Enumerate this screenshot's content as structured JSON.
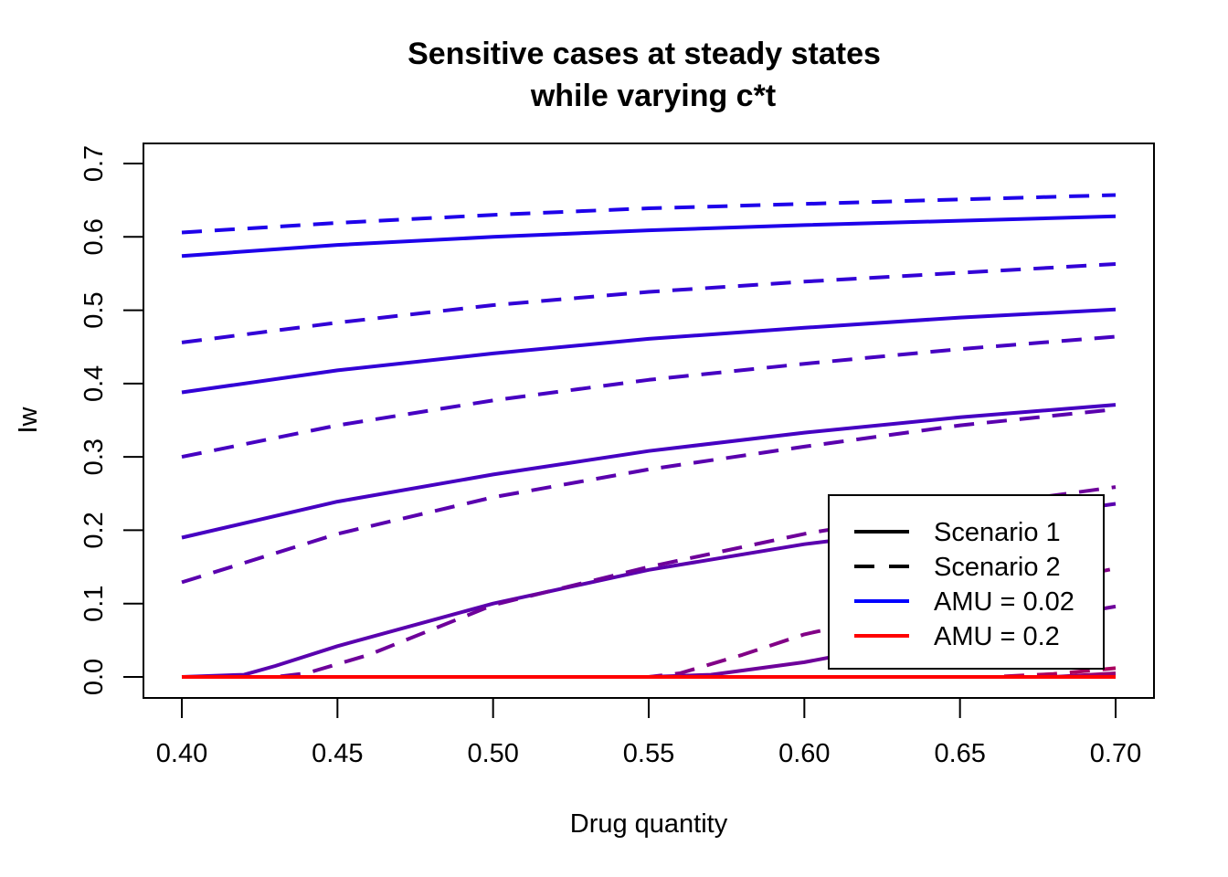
{
  "chart_data": {
    "type": "line",
    "title": [
      "Sensitive cases at steady states",
      "while varying c*t"
    ],
    "xlabel": "Drug quantity",
    "ylabel": "Iw",
    "xlim": [
      0.4,
      0.7
    ],
    "ylim": [
      0.0,
      0.7
    ],
    "x_ticks": [
      "0.40",
      "0.45",
      "0.50",
      "0.55",
      "0.60",
      "0.65",
      "0.70"
    ],
    "y_ticks": [
      "0.0",
      "0.1",
      "0.2",
      "0.3",
      "0.4",
      "0.5",
      "0.6",
      "0.7"
    ],
    "grid": false,
    "legend": {
      "position": "bottom-right",
      "entries": [
        {
          "label": "Scenario 1",
          "color": "#000000",
          "dash": "solid"
        },
        {
          "label": "Scenario 2",
          "color": "#000000",
          "dash": "dashed"
        },
        {
          "label": "AMU = 0.02",
          "color": "#0000FF",
          "dash": "solid"
        },
        {
          "label": "AMU = 0.2",
          "color": "#FF0000",
          "dash": "solid"
        }
      ]
    },
    "series": [
      {
        "color": "#1E00EA",
        "dash": "dashed",
        "x": [
          0.4,
          0.45,
          0.5,
          0.55,
          0.6,
          0.65,
          0.7
        ],
        "y": [
          0.606,
          0.619,
          0.63,
          0.639,
          0.645,
          0.651,
          0.657
        ]
      },
      {
        "color": "#1E00EA",
        "dash": "solid",
        "x": [
          0.4,
          0.45,
          0.5,
          0.55,
          0.6,
          0.65,
          0.7
        ],
        "y": [
          0.574,
          0.589,
          0.6,
          0.609,
          0.616,
          0.622,
          0.628
        ]
      },
      {
        "color": "#3200D6",
        "dash": "dashed",
        "x": [
          0.4,
          0.45,
          0.5,
          0.55,
          0.6,
          0.65,
          0.7
        ],
        "y": [
          0.456,
          0.483,
          0.507,
          0.525,
          0.539,
          0.551,
          0.563
        ]
      },
      {
        "color": "#3200D6",
        "dash": "solid",
        "x": [
          0.4,
          0.45,
          0.5,
          0.55,
          0.6,
          0.65,
          0.7
        ],
        "y": [
          0.388,
          0.418,
          0.441,
          0.461,
          0.476,
          0.49,
          0.501
        ]
      },
      {
        "color": "#4600C2",
        "dash": "dashed",
        "x": [
          0.4,
          0.45,
          0.5,
          0.55,
          0.6,
          0.65,
          0.7
        ],
        "y": [
          0.3,
          0.343,
          0.377,
          0.405,
          0.427,
          0.447,
          0.464
        ]
      },
      {
        "color": "#4600C2",
        "dash": "solid",
        "x": [
          0.4,
          0.45,
          0.5,
          0.55,
          0.6,
          0.65,
          0.7
        ],
        "y": [
          0.19,
          0.239,
          0.276,
          0.308,
          0.333,
          0.354,
          0.371
        ]
      },
      {
        "color": "#5A00AE",
        "dash": "dashed",
        "x": [
          0.4,
          0.45,
          0.5,
          0.55,
          0.6,
          0.65,
          0.7
        ],
        "y": [
          0.129,
          0.195,
          0.245,
          0.283,
          0.314,
          0.343,
          0.365
        ]
      },
      {
        "color": "#5A00AE",
        "dash": "solid",
        "x": [
          0.4,
          0.42,
          0.43,
          0.45,
          0.5,
          0.55,
          0.6,
          0.65,
          0.7
        ],
        "y": [
          0.0,
          0.003,
          0.015,
          0.042,
          0.1,
          0.146,
          0.181,
          0.207,
          0.236
        ]
      },
      {
        "color": "#6E009A",
        "dash": "dashed",
        "x": [
          0.4,
          0.43,
          0.44,
          0.46,
          0.5,
          0.55,
          0.6,
          0.65,
          0.7
        ],
        "y": [
          0.0,
          0.0,
          0.005,
          0.03,
          0.098,
          0.15,
          0.195,
          0.23,
          0.259
        ]
      },
      {
        "color": "#6E009A",
        "dash": "solid",
        "x": [
          0.4,
          0.55,
          0.57,
          0.6,
          0.65,
          0.7
        ],
        "y": [
          0.0,
          0.0,
          0.003,
          0.02,
          0.06,
          0.096
        ]
      },
      {
        "color": "#820086",
        "dash": "dashed",
        "x": [
          0.4,
          0.55,
          0.56,
          0.58,
          0.6,
          0.65,
          0.7
        ],
        "y": [
          0.0,
          0.0,
          0.005,
          0.03,
          0.058,
          0.105,
          0.148
        ]
      },
      {
        "color": "#960072",
        "dash": "solid",
        "x": [
          0.4,
          0.68,
          0.7
        ],
        "y": [
          0.0,
          0.0,
          0.005
        ]
      },
      {
        "color": "#AA005E",
        "dash": "dashed",
        "x": [
          0.4,
          0.66,
          0.68,
          0.7
        ],
        "y": [
          0.0,
          0.0,
          0.004,
          0.012
        ]
      },
      {
        "color": "#FF0000",
        "dash": "solid",
        "x": [
          0.4,
          0.7
        ],
        "y": [
          0.0,
          0.0
        ]
      }
    ]
  }
}
